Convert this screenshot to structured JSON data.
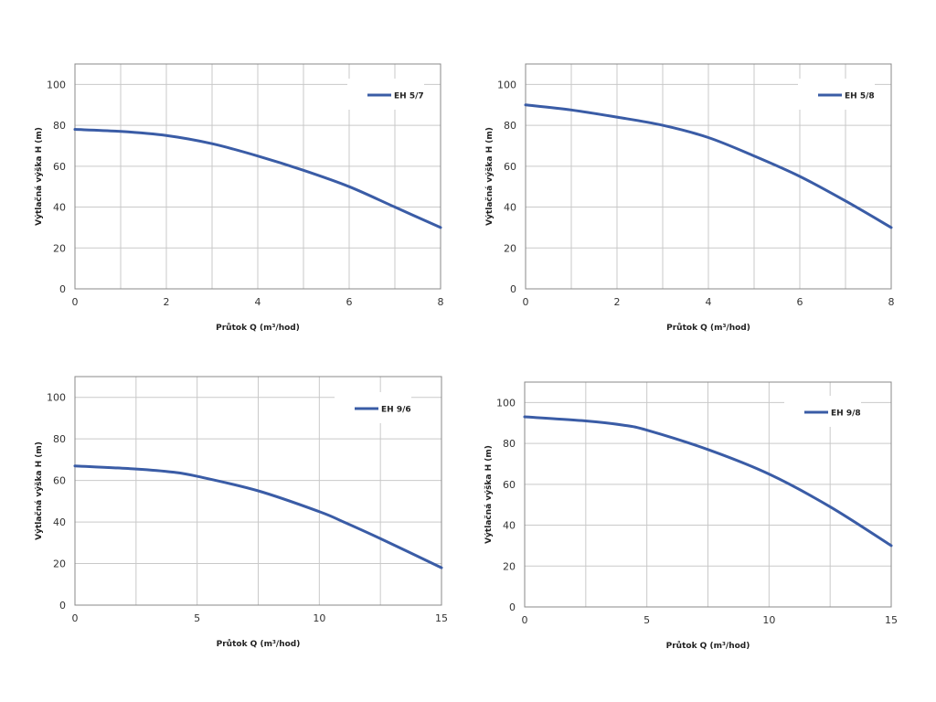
{
  "colors": {
    "series": "#3a5ca6",
    "grid": "#c9c9c9",
    "frame": "#888888"
  },
  "chart_data": [
    {
      "type": "line",
      "xlabel": "Průtok Q (m³/hod)",
      "ylabel": "Výtlačná výška H (m)",
      "xlim": [
        0,
        8
      ],
      "ylim": [
        0,
        110
      ],
      "xticks": [
        0,
        2,
        4,
        6,
        8
      ],
      "yticks": [
        0,
        20,
        40,
        60,
        80,
        100
      ],
      "grid": true,
      "legend_position": "top-right",
      "series": [
        {
          "name": "EH 5/7",
          "x": [
            0,
            1,
            2,
            3,
            4,
            5,
            6,
            7,
            8
          ],
          "y": [
            78,
            77,
            75,
            71,
            65,
            58,
            50,
            40,
            30
          ]
        }
      ]
    },
    {
      "type": "line",
      "xlabel": "Průtok Q (m³/hod)",
      "ylabel": "Výtlačná výška H (m)",
      "xlim": [
        0,
        8
      ],
      "ylim": [
        0,
        110
      ],
      "xticks": [
        0,
        2,
        4,
        6,
        8
      ],
      "yticks": [
        0,
        20,
        40,
        60,
        80,
        100
      ],
      "grid": true,
      "legend_position": "top-right",
      "series": [
        {
          "name": "EH 5/8",
          "x": [
            0,
            1,
            2,
            3,
            4,
            5,
            6,
            7,
            8
          ],
          "y": [
            90,
            87.5,
            84,
            80,
            74,
            65,
            55,
            43,
            30
          ]
        }
      ]
    },
    {
      "type": "line",
      "xlabel": "Průtok Q (m³/hod)",
      "ylabel": "Výtlačná výška H (m)",
      "xlim": [
        0,
        15
      ],
      "ylim": [
        0,
        110
      ],
      "xticks": [
        0,
        5,
        10,
        15
      ],
      "yticks": [
        0,
        20,
        40,
        60,
        80,
        100
      ],
      "grid": true,
      "legend_position": "top-right",
      "series": [
        {
          "name": "EH 9/6",
          "x": [
            0,
            2.5,
            4,
            5,
            7.5,
            10,
            11,
            12.5,
            15
          ],
          "y": [
            67,
            65.5,
            64,
            62,
            55,
            45,
            40,
            32,
            18
          ]
        }
      ]
    },
    {
      "type": "line",
      "xlabel": "Průtok Q (m³/hod)",
      "ylabel": "Výtlačná výška H (m)",
      "xlim": [
        0,
        15
      ],
      "ylim": [
        0,
        110
      ],
      "xticks": [
        0,
        5,
        10,
        15
      ],
      "yticks": [
        0,
        20,
        40,
        60,
        80,
        100
      ],
      "grid": true,
      "legend_position": "top-right",
      "series": [
        {
          "name": "EH 9/8",
          "x": [
            0,
            2.5,
            4,
            5,
            7.5,
            10,
            12.5,
            15
          ],
          "y": [
            93,
            91,
            89,
            86.5,
            77,
            65,
            49,
            30
          ]
        }
      ]
    }
  ]
}
